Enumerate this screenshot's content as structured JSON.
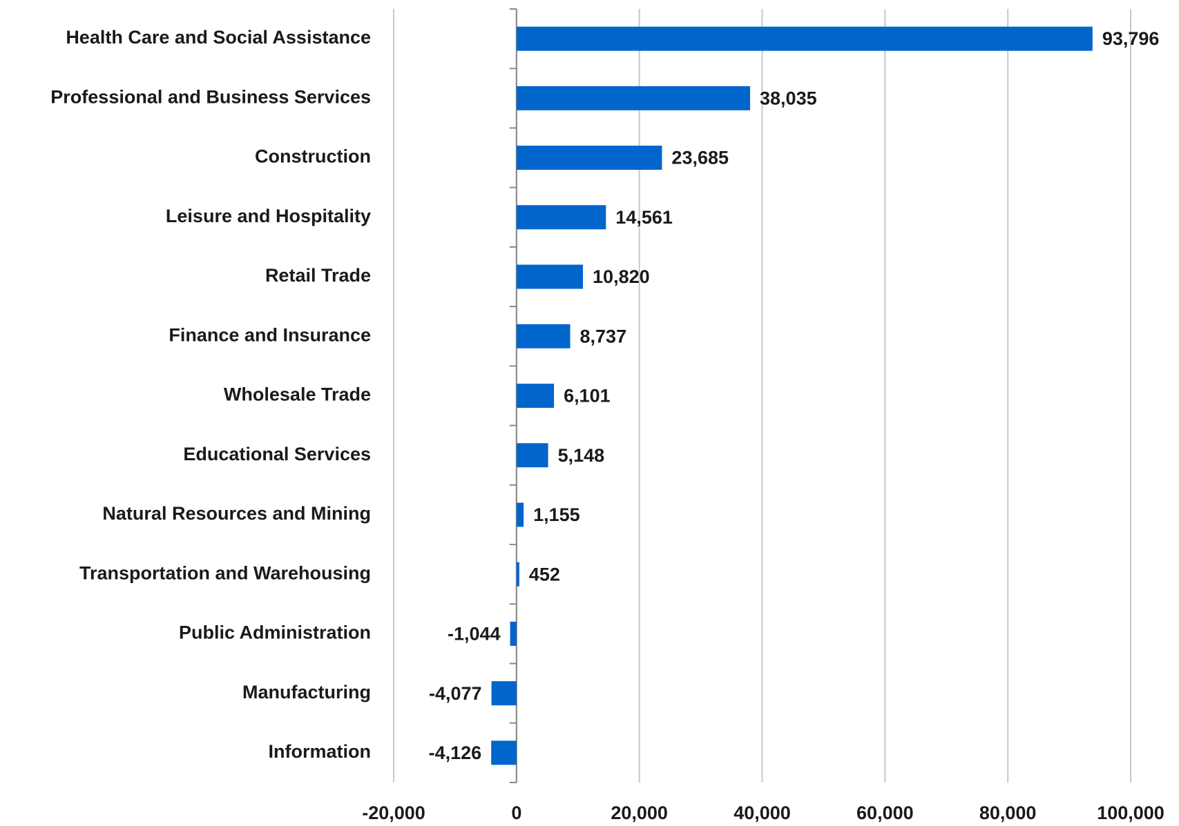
{
  "chart_data": {
    "type": "bar",
    "orientation": "horizontal",
    "categories": [
      "Health Care and Social Assistance",
      "Professional and Business Services",
      "Construction",
      "Leisure and Hospitality",
      "Retail Trade",
      "Finance and Insurance",
      "Wholesale Trade",
      "Educational Services",
      "Natural Resources and Mining",
      "Transportation and Warehousing",
      "Public Administration",
      "Manufacturing",
      "Information"
    ],
    "values": [
      93796,
      38035,
      23685,
      14561,
      10820,
      8737,
      6101,
      5148,
      1155,
      452,
      -1044,
      -4077,
      -4126
    ],
    "value_labels": [
      "93,796",
      "38,035",
      "23,685",
      "14,561",
      "10,820",
      "8,737",
      "6,101",
      "5,148",
      "1,155",
      "452",
      "-1,044",
      "-4,077",
      "-4,126"
    ],
    "color": "#0066cc",
    "xlim": [
      -20000,
      100000
    ],
    "xticks": [
      {
        "value": -20000,
        "label": "-20,000"
      },
      0,
      {
        "value": 20000,
        "label": "20,000"
      },
      {
        "value": 40000,
        "label": "40,000"
      },
      {
        "value": 60000,
        "label": "60,000"
      },
      {
        "value": 80000,
        "label": "80,000"
      },
      {
        "value": 100000,
        "label": "100,000"
      }
    ],
    "grid": true
  }
}
